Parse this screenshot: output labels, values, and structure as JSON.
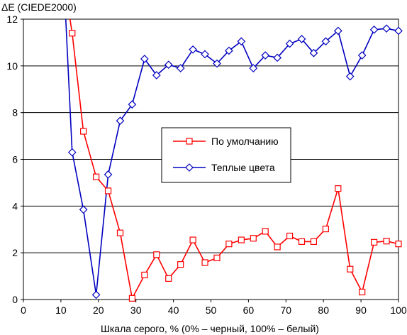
{
  "chart_data": {
    "type": "line",
    "ylabel": "ΔE (CIEDE2000)",
    "xlabel": "Шкала серого, % (0% – черный, 100% – белый)",
    "xlim": [
      0,
      100
    ],
    "ylim": [
      0,
      12
    ],
    "x_ticks": [
      "0",
      "10",
      "20",
      "30",
      "40",
      "50",
      "60",
      "70",
      "80",
      "90",
      "100"
    ],
    "y_ticks": [
      "0",
      "2",
      "4",
      "6",
      "8",
      "10",
      "12"
    ],
    "grid": "horizontal",
    "legend_position": "center",
    "series": [
      {
        "name": "По умолчанию",
        "color": "#ff0000",
        "marker": "square",
        "x": [
          13,
          16,
          19.4,
          22.6,
          25.8,
          29,
          32.3,
          35.5,
          38.7,
          41.9,
          45.2,
          48.4,
          51.6,
          54.8,
          58.1,
          61.3,
          64.5,
          67.7,
          71,
          74.2,
          77.4,
          80.6,
          83.9,
          87.1,
          90.3,
          93.5,
          96.8,
          100
        ],
        "y": [
          11.4,
          7.2,
          5.25,
          4.65,
          2.85,
          0.05,
          1.05,
          1.92,
          0.9,
          1.5,
          2.55,
          1.58,
          1.78,
          2.38,
          2.55,
          2.62,
          2.92,
          2.25,
          2.72,
          2.48,
          2.48,
          3.02,
          4.75,
          1.3,
          0.32,
          2.45,
          2.5,
          2.38
        ]
      },
      {
        "name": "Теплые цвета",
        "color": "#0000c0",
        "marker": "diamond",
        "x": [
          13,
          16,
          19.4,
          22.6,
          25.8,
          29,
          32.3,
          35.5,
          38.7,
          41.9,
          45.2,
          48.4,
          51.6,
          54.8,
          58.1,
          61.3,
          64.5,
          67.7,
          71,
          74.2,
          77.4,
          80.6,
          83.9,
          87.1,
          90.3,
          93.5,
          96.8,
          100
        ],
        "y": [
          6.3,
          3.85,
          0.2,
          5.35,
          7.65,
          8.35,
          10.3,
          9.6,
          10.05,
          9.9,
          10.7,
          10.5,
          10.1,
          10.65,
          11.05,
          9.9,
          10.45,
          10.35,
          10.95,
          11.15,
          10.55,
          11.05,
          11.5,
          9.55,
          10.45,
          11.55,
          11.6,
          11.5
        ]
      }
    ],
    "offscale_segments": [
      {
        "series": 0,
        "from": [
          10.5,
          14
        ],
        "to": [
          13,
          11.4
        ]
      },
      {
        "series": 1,
        "from": [
          11,
          13
        ],
        "to": [
          13,
          6.3
        ]
      }
    ]
  }
}
